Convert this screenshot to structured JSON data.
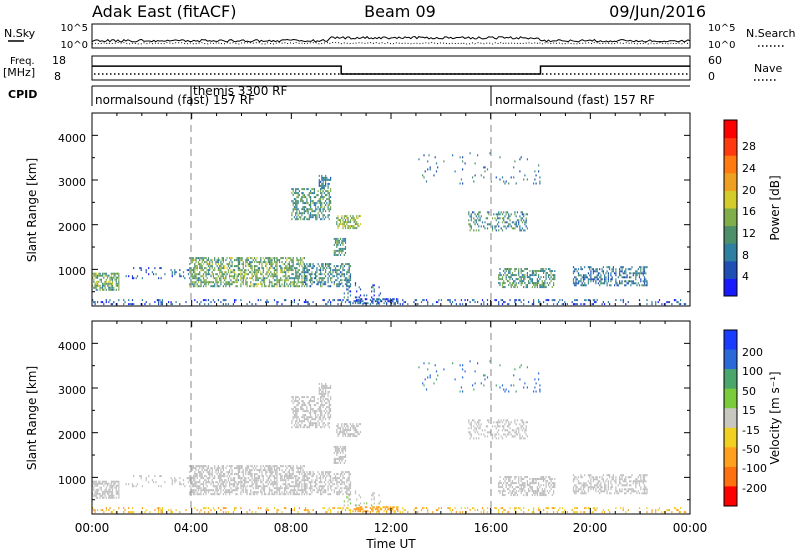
{
  "header": {
    "station": "Adak East (fitACF)",
    "beam": "Beam 09",
    "date": "09/Jun/2016"
  },
  "top_panels": {
    "nsky_label": "N.Sky",
    "nsearch_label": "N.Search",
    "left_tick_top": "10^5",
    "left_tick_bottom": "10^0",
    "right_tick_top": "10^5",
    "right_tick_bottom": "10^0",
    "freq_label": "Freq.",
    "freq_unit": "[MHz]",
    "freq_tick_top": "18",
    "freq_tick_bottom": "8",
    "nave_label": "Nave",
    "nave_tick_top": "60",
    "nave_tick_bottom": "0",
    "cpid_label": "CPID"
  },
  "cpid_segments": [
    {
      "label": "normalsound (fast) 157 RF",
      "start_hour": 0,
      "end_hour": 4
    },
    {
      "label": "themis 3300 RF",
      "start_hour": 4,
      "end_hour": 16
    },
    {
      "label": "normalsound (fast) 157 RF",
      "start_hour": 16,
      "end_hour": 24
    }
  ],
  "x_axis": {
    "ticks": [
      "00:00",
      "04:00",
      "08:00",
      "12:00",
      "16:00",
      "20:00",
      "00:00"
    ],
    "label": "Time UT"
  },
  "power_panel": {
    "ylabel": "Slant Range [km]",
    "yticks": [
      "1000",
      "2000",
      "3000",
      "4000"
    ],
    "colorbar_label": "Power [dB]",
    "colorbar_ticks": [
      "4",
      "8",
      "12",
      "16",
      "20",
      "24",
      "28"
    ]
  },
  "velocity_panel": {
    "ylabel": "Slant Range [km]",
    "yticks": [
      "1000",
      "2000",
      "3000",
      "4000"
    ],
    "colorbar_label": "Velocity [m s⁻¹]",
    "colorbar_ticks": [
      "200",
      "100",
      "50",
      "15",
      "-15",
      "-50",
      "-100",
      "-200"
    ]
  },
  "colors": {
    "power_scale": [
      "#1a1aff",
      "#1f4fb4",
      "#2f7fa0",
      "#4d8f6a",
      "#7fae4a",
      "#d4cc2a",
      "#f0a020",
      "#ff7a10",
      "#ff3a10",
      "#ff0000"
    ],
    "velocity_scale": [
      "#1a3cff",
      "#2a6ad8",
      "#4aa66a",
      "#7acc3a",
      "#c8c8c0",
      "#f0d020",
      "#ffa020",
      "#ff7010",
      "#ff0000"
    ],
    "ground_scatter": "#bebebe"
  },
  "chart_data": {
    "type": "heatmap",
    "x_unit": "hours UT",
    "xlim": [
      0,
      24
    ],
    "ylim": [
      180,
      4500
    ],
    "dashed_time_markers": [
      4,
      16
    ],
    "freq_trace": [
      {
        "start": 0,
        "end": 10,
        "freq_mhz": 13.8
      },
      {
        "start": 10,
        "end": 18,
        "freq_mhz": 10.5
      },
      {
        "start": 18,
        "end": 24,
        "freq_mhz": 13.8
      }
    ],
    "scatter_regions": [
      {
        "t0": 0.0,
        "t1": 1.1,
        "r0": 520,
        "r1": 900,
        "power": 12,
        "velocity": 0,
        "density": 0.6
      },
      {
        "t0": 1.3,
        "t1": 3.9,
        "r0": 780,
        "r1": 1050,
        "power": 6,
        "velocity": 0,
        "density": 0.12
      },
      {
        "t0": 3.9,
        "t1": 8.5,
        "r0": 600,
        "r1": 1250,
        "power": 12,
        "velocity": 0,
        "density": 0.55
      },
      {
        "t0": 8.5,
        "t1": 10.4,
        "r0": 600,
        "r1": 1100,
        "power": 9,
        "velocity": 0,
        "density": 0.45
      },
      {
        "t0": 10.0,
        "t1": 11.6,
        "r0": 350,
        "r1": 700,
        "power": 6,
        "velocity": 10,
        "density": 0.15
      },
      {
        "t0": 10.4,
        "t1": 12.3,
        "r0": 220,
        "r1": 350,
        "power": 5,
        "velocity": -40,
        "density": 0.45
      },
      {
        "t0": 8.0,
        "t1": 9.6,
        "r0": 2100,
        "r1": 2800,
        "power": 10,
        "velocity": 0,
        "density": 0.45
      },
      {
        "t0": 9.1,
        "t1": 9.6,
        "r0": 2800,
        "r1": 3100,
        "power": 8,
        "velocity": 0,
        "density": 0.45
      },
      {
        "t0": 9.8,
        "t1": 10.8,
        "r0": 1900,
        "r1": 2200,
        "power": 14,
        "velocity": 0,
        "density": 0.55
      },
      {
        "t0": 9.7,
        "t1": 10.2,
        "r0": 1300,
        "r1": 1700,
        "power": 10,
        "velocity": 0,
        "density": 0.55
      },
      {
        "t0": 15.1,
        "t1": 17.5,
        "r0": 1850,
        "r1": 2300,
        "power": 9,
        "velocity": 0,
        "density": 0.35
      },
      {
        "t0": 16.3,
        "t1": 18.6,
        "r0": 580,
        "r1": 1020,
        "power": 10,
        "velocity": 0,
        "density": 0.45
      },
      {
        "t0": 19.3,
        "t1": 22.3,
        "r0": 620,
        "r1": 1050,
        "power": 7,
        "velocity": 0,
        "density": 0.45
      },
      {
        "t0": 0.0,
        "t1": 24.0,
        "r0": 200,
        "r1": 330,
        "power": 5,
        "velocity": -30,
        "density": 0.2
      },
      {
        "t0": 13.0,
        "t1": 18.0,
        "r0": 2900,
        "r1": 3600,
        "power": 7,
        "velocity": 80,
        "density": 0.03
      }
    ]
  }
}
